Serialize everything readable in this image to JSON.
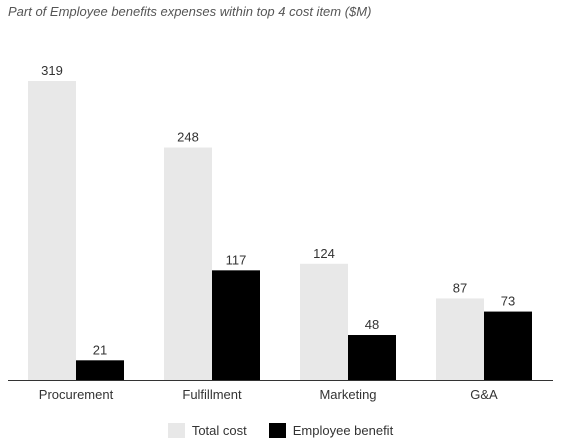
{
  "chart_data": {
    "type": "bar",
    "title": "Part of Employee benefits expenses within top 4 cost item ($M)",
    "categories": [
      "Procurement",
      "Fulfillment",
      "Marketing",
      "G&A"
    ],
    "series": [
      {
        "name": "Total cost",
        "values": [
          319,
          248,
          124,
          87
        ],
        "color": "#e8e8e8"
      },
      {
        "name": "Employee benefit",
        "values": [
          21,
          117,
          48,
          73
        ],
        "color": "#000000"
      }
    ],
    "ylim": [
      0,
      319
    ],
    "grid": false,
    "legend": "bottom",
    "xlabel": "",
    "ylabel": ""
  }
}
